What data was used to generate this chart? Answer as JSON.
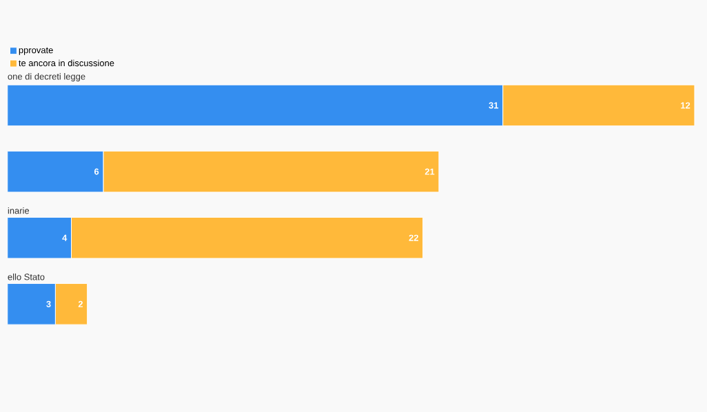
{
  "chart_data": {
    "type": "bar",
    "orientation": "horizontal",
    "stacked": true,
    "legend": "top left",
    "categories": [
      "one di decreti legge",
      null,
      "inarie",
      "ello Stato"
    ],
    "series": [
      {
        "name": "pprovate",
        "color": "#348ef0",
        "values": [
          31,
          6,
          4,
          3
        ],
        "value_labels": [
          "31",
          "6",
          "4",
          "3"
        ]
      },
      {
        "name": "te ancora in discussione",
        "color": "#ffb93a",
        "values": [
          12,
          21,
          22,
          2
        ],
        "value_labels": [
          "12",
          "21",
          "22",
          "2"
        ]
      }
    ]
  }
}
